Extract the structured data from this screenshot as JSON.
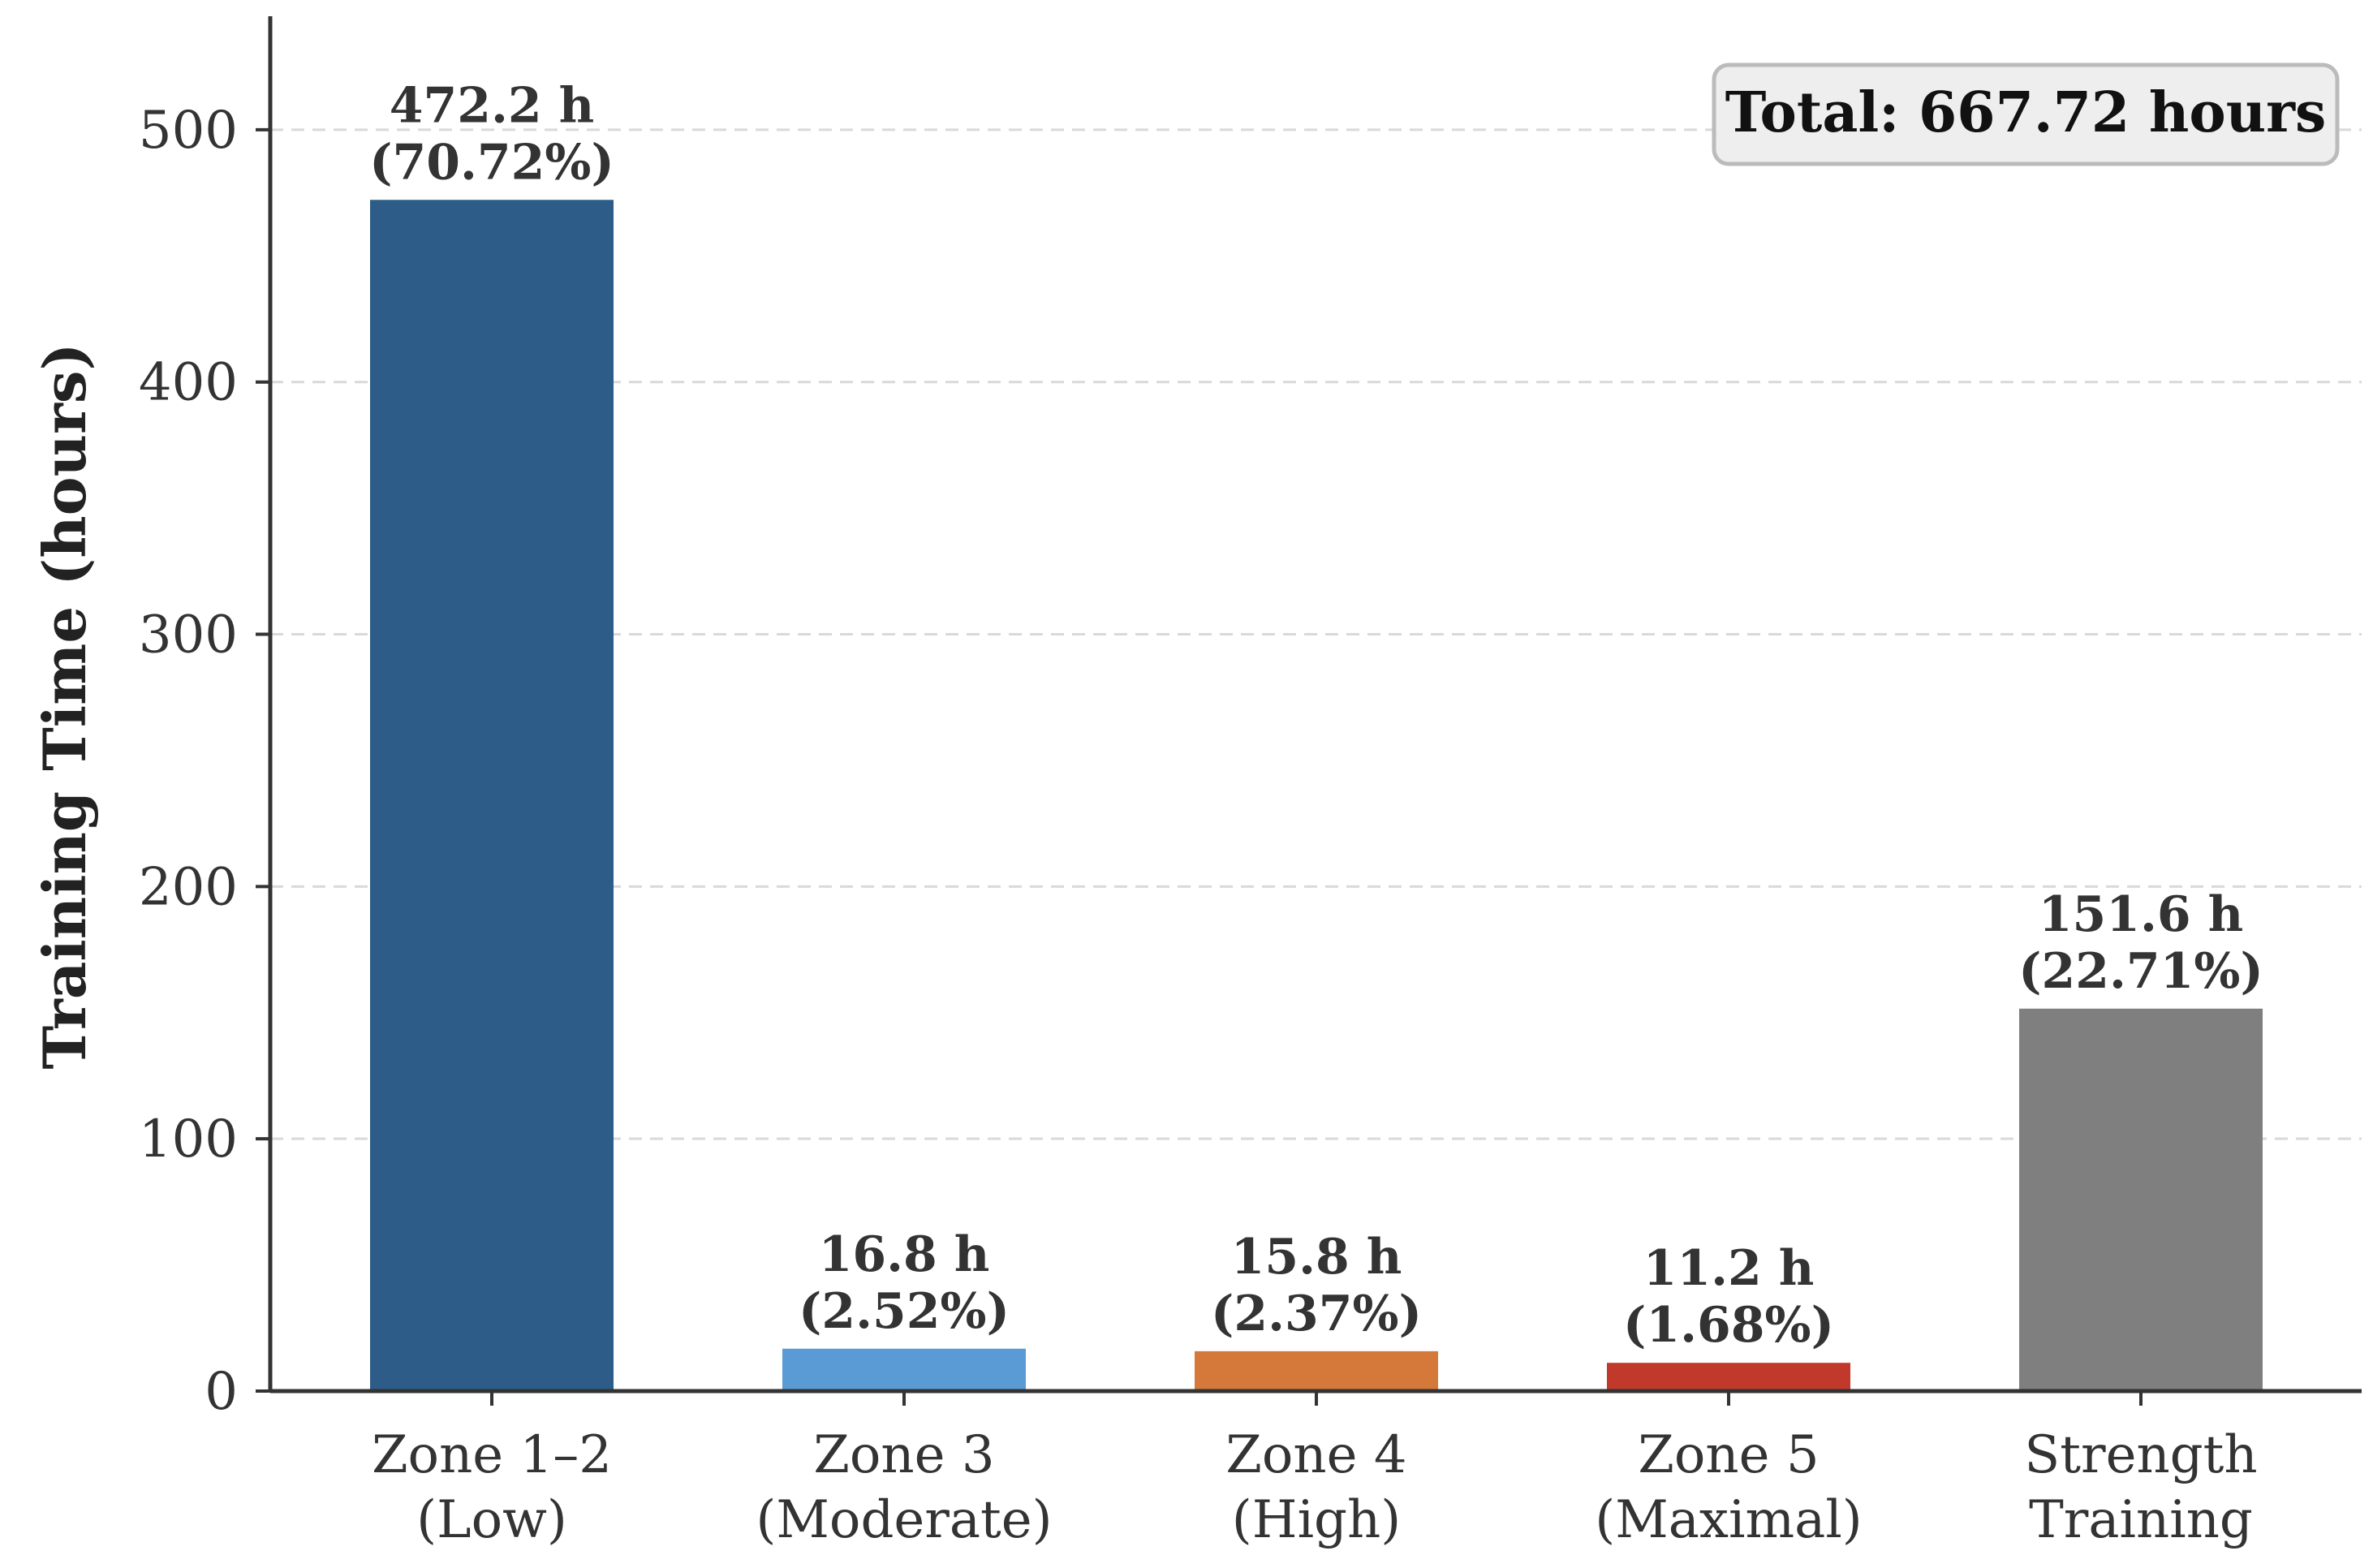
{
  "chart_data": {
    "type": "bar",
    "categories": [
      [
        "Zone 1–2",
        "(Low)"
      ],
      [
        "Zone 3",
        "(Moderate)"
      ],
      [
        "Zone 4",
        "(High)"
      ],
      [
        "Zone 5",
        "(Maximal)"
      ],
      [
        "Strength",
        "Training"
      ]
    ],
    "values": [
      472.2,
      16.8,
      15.8,
      11.2,
      151.6
    ],
    "percentages": [
      "70.72%",
      "2.52%",
      "2.37%",
      "1.68%",
      "22.71%"
    ],
    "value_labels": [
      [
        "472.2 h",
        "(70.72%)"
      ],
      [
        "16.8 h",
        "(2.52%)"
      ],
      [
        "15.8 h",
        "(2.37%)"
      ],
      [
        "11.2 h",
        "(1.68%)"
      ],
      [
        "151.6 h",
        "(22.71%)"
      ]
    ],
    "colors": [
      "#2c5c87",
      "#5a9bd5",
      "#d4793a",
      "#c0392b",
      "#7f7f7f"
    ],
    "xlabel": "",
    "ylabel": "Training Time (hours)",
    "ylim": [
      0,
      545
    ],
    "yticks": [
      0,
      100,
      200,
      300,
      400,
      500
    ],
    "grid": "horizontal dashed",
    "annotation": "Total: 667.72 hours",
    "annotation_position": "top-right"
  }
}
